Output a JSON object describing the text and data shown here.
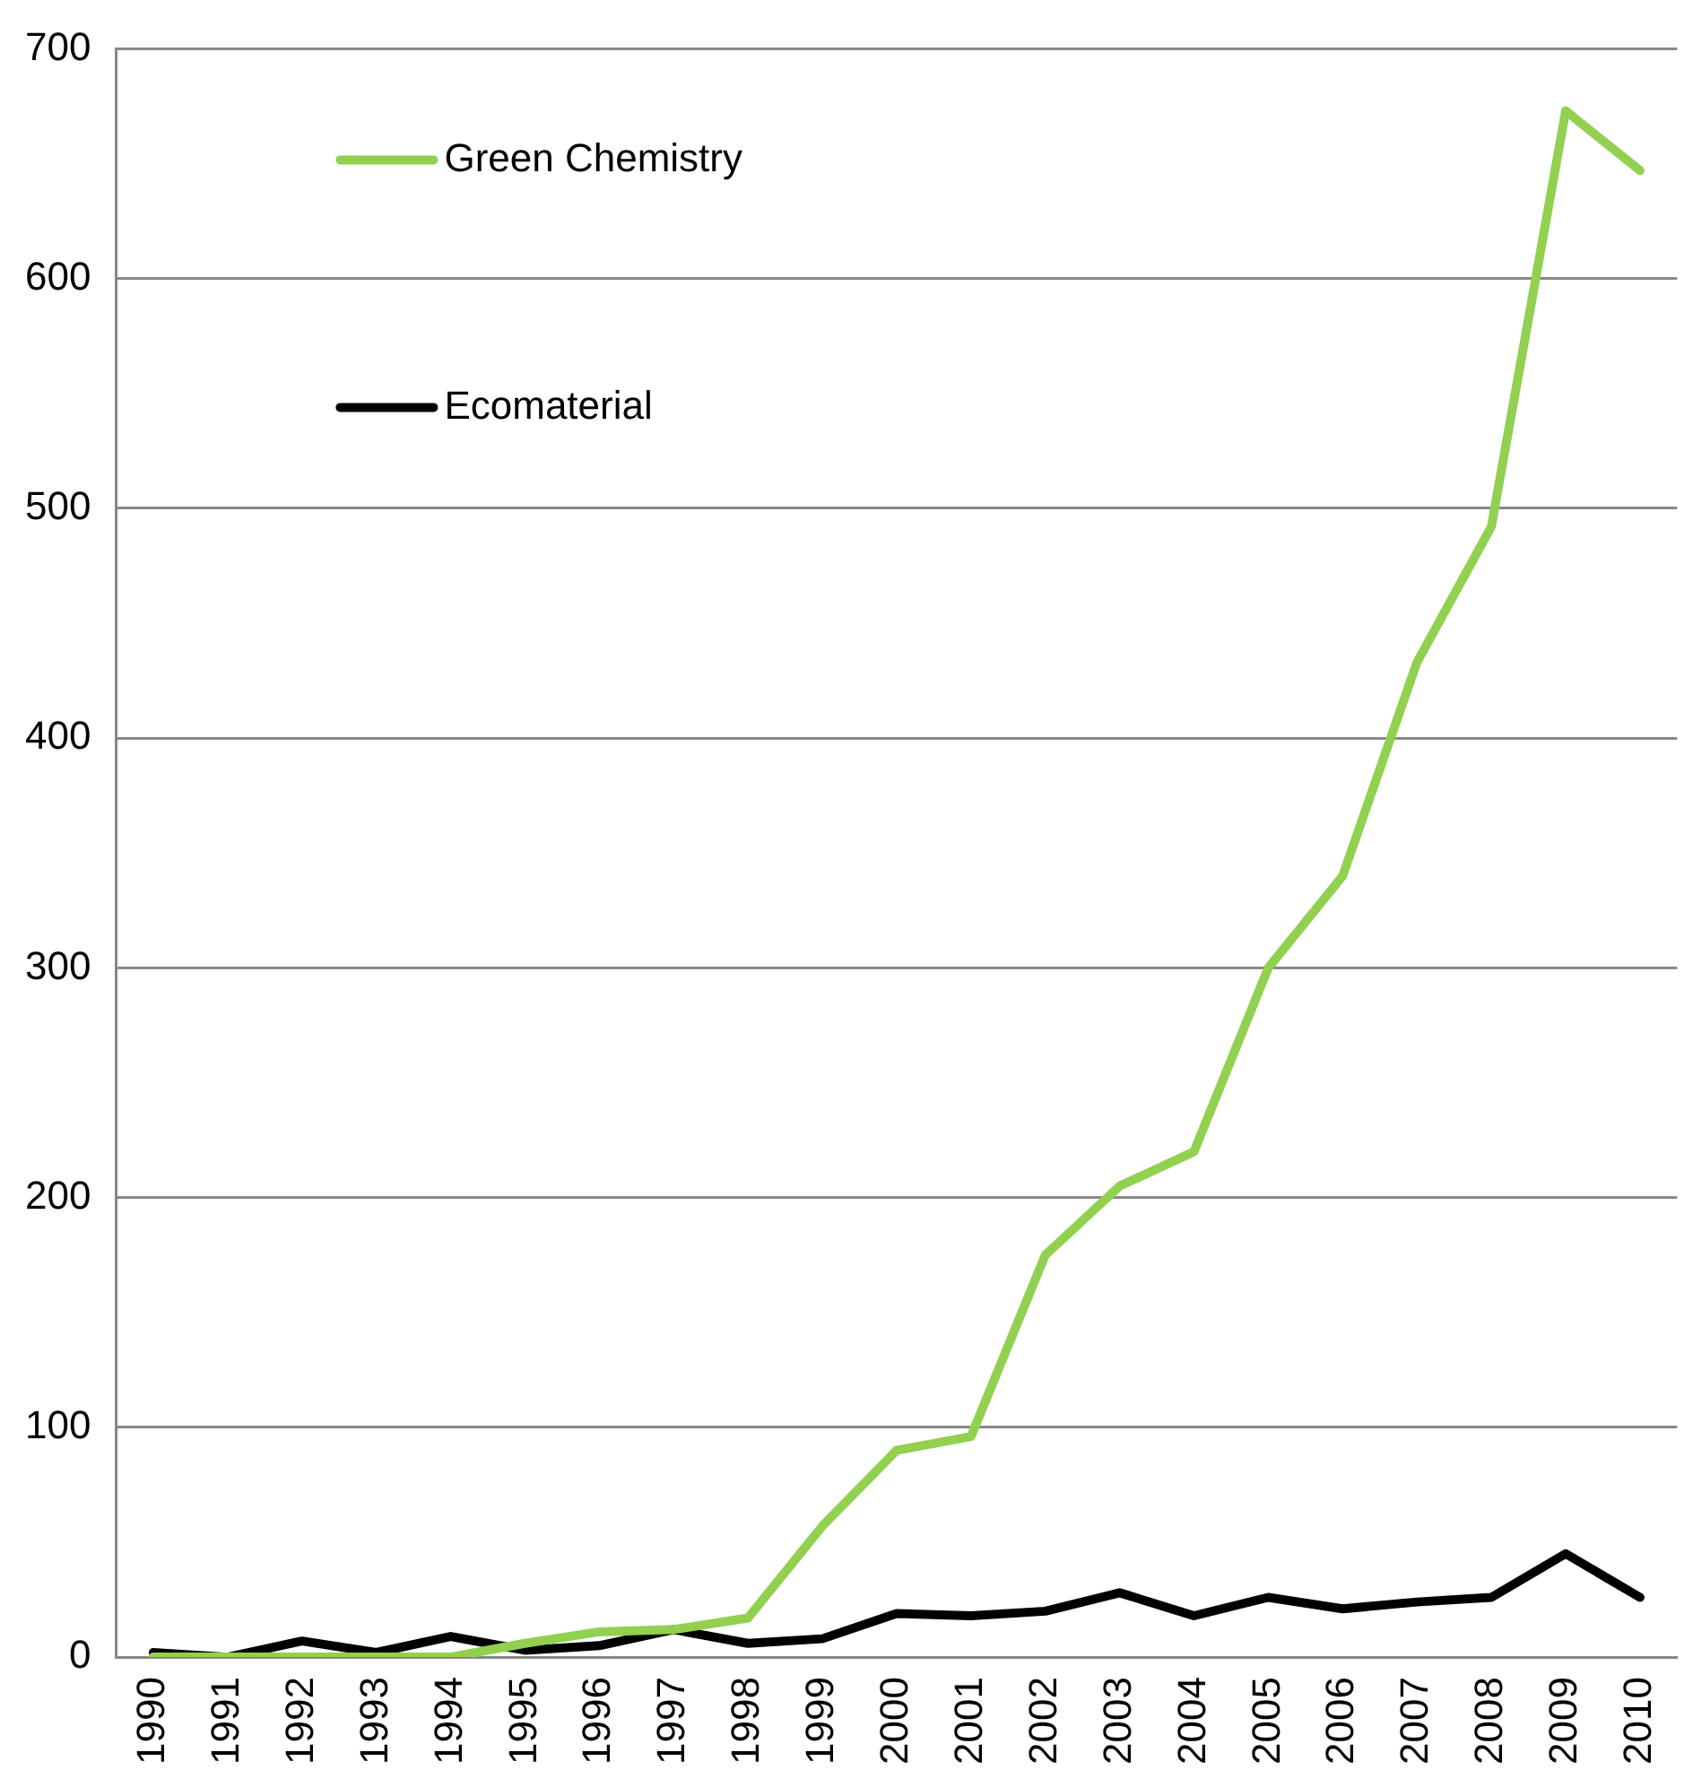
{
  "chart_data": {
    "type": "line",
    "categories": [
      "1990",
      "1991",
      "1992",
      "1993",
      "1994",
      "1995",
      "1996",
      "1997",
      "1998",
      "1999",
      "2000",
      "2001",
      "2002",
      "2003",
      "2004",
      "2005",
      "2006",
      "2007",
      "2008",
      "2009",
      "2010"
    ],
    "series": [
      {
        "name": "Green Chemistry",
        "color": "#92d050",
        "values": [
          0,
          0,
          0,
          0,
          0,
          6,
          11,
          12,
          17,
          57,
          90,
          96,
          175,
          205,
          220,
          300,
          340,
          433,
          492,
          673,
          647
        ]
      },
      {
        "name": "Ecomaterial",
        "color": "#000000",
        "values": [
          2,
          0,
          7,
          2,
          9,
          3,
          5,
          12,
          6,
          8,
          19,
          18,
          20,
          28,
          18,
          26,
          21,
          24,
          26,
          45,
          26
        ]
      }
    ],
    "ylim": [
      0,
      700
    ],
    "yticks": [
      0,
      100,
      200,
      300,
      400,
      500,
      600,
      700
    ],
    "grid": "y",
    "legend": "top left",
    "marker": "none",
    "line_style": "solid"
  }
}
